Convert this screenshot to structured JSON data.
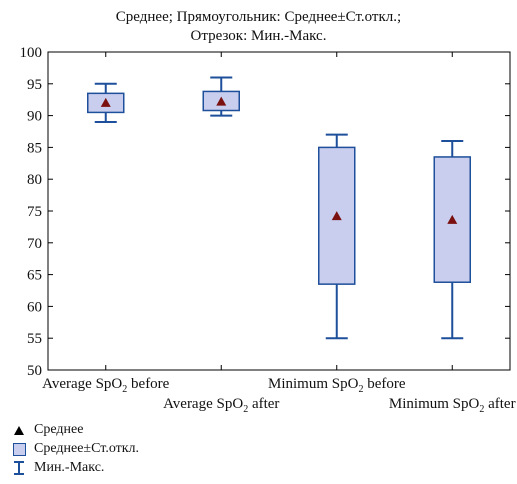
{
  "title": {
    "line1": "Среднее; Прямоугольник: Среднее±Ст.откл.;",
    "line2": "Отрезок: Мин.-Макс."
  },
  "legend": {
    "mean": "Среднее",
    "box": "Среднее±Ст.откл.",
    "whisker": "Мин.-Макс."
  },
  "colors": {
    "box_fill": "#c9cdee",
    "box_stroke": "#1e4f9a",
    "mean_marker": "#7a1010"
  },
  "chart_data": {
    "type": "boxplot",
    "ylim": [
      50,
      100
    ],
    "yticks": [
      50,
      55,
      60,
      65,
      70,
      75,
      80,
      85,
      90,
      95,
      100
    ],
    "grid": false,
    "legend_position": "bottom-left",
    "categories": [
      {
        "label_main": "Average SpO",
        "label_sub": "2",
        "label_tail": " before",
        "row": 1,
        "mean": 92.0,
        "sd_low": 90.5,
        "sd_high": 93.5,
        "min": 89.0,
        "max": 95.0
      },
      {
        "label_main": "Average SpO",
        "label_sub": "2",
        "label_tail": " after",
        "row": 2,
        "mean": 92.2,
        "sd_low": 90.8,
        "sd_high": 93.8,
        "min": 90.0,
        "max": 96.0
      },
      {
        "label_main": "Minimum SpO",
        "label_sub": "2",
        "label_tail": " before",
        "row": 1,
        "mean": 74.2,
        "sd_low": 63.5,
        "sd_high": 85.0,
        "min": 55.0,
        "max": 87.0
      },
      {
        "label_main": "Minimum SpO",
        "label_sub": "2",
        "label_tail": " after",
        "row": 2,
        "mean": 73.6,
        "sd_low": 63.8,
        "sd_high": 83.5,
        "min": 55.0,
        "max": 86.0
      }
    ]
  }
}
